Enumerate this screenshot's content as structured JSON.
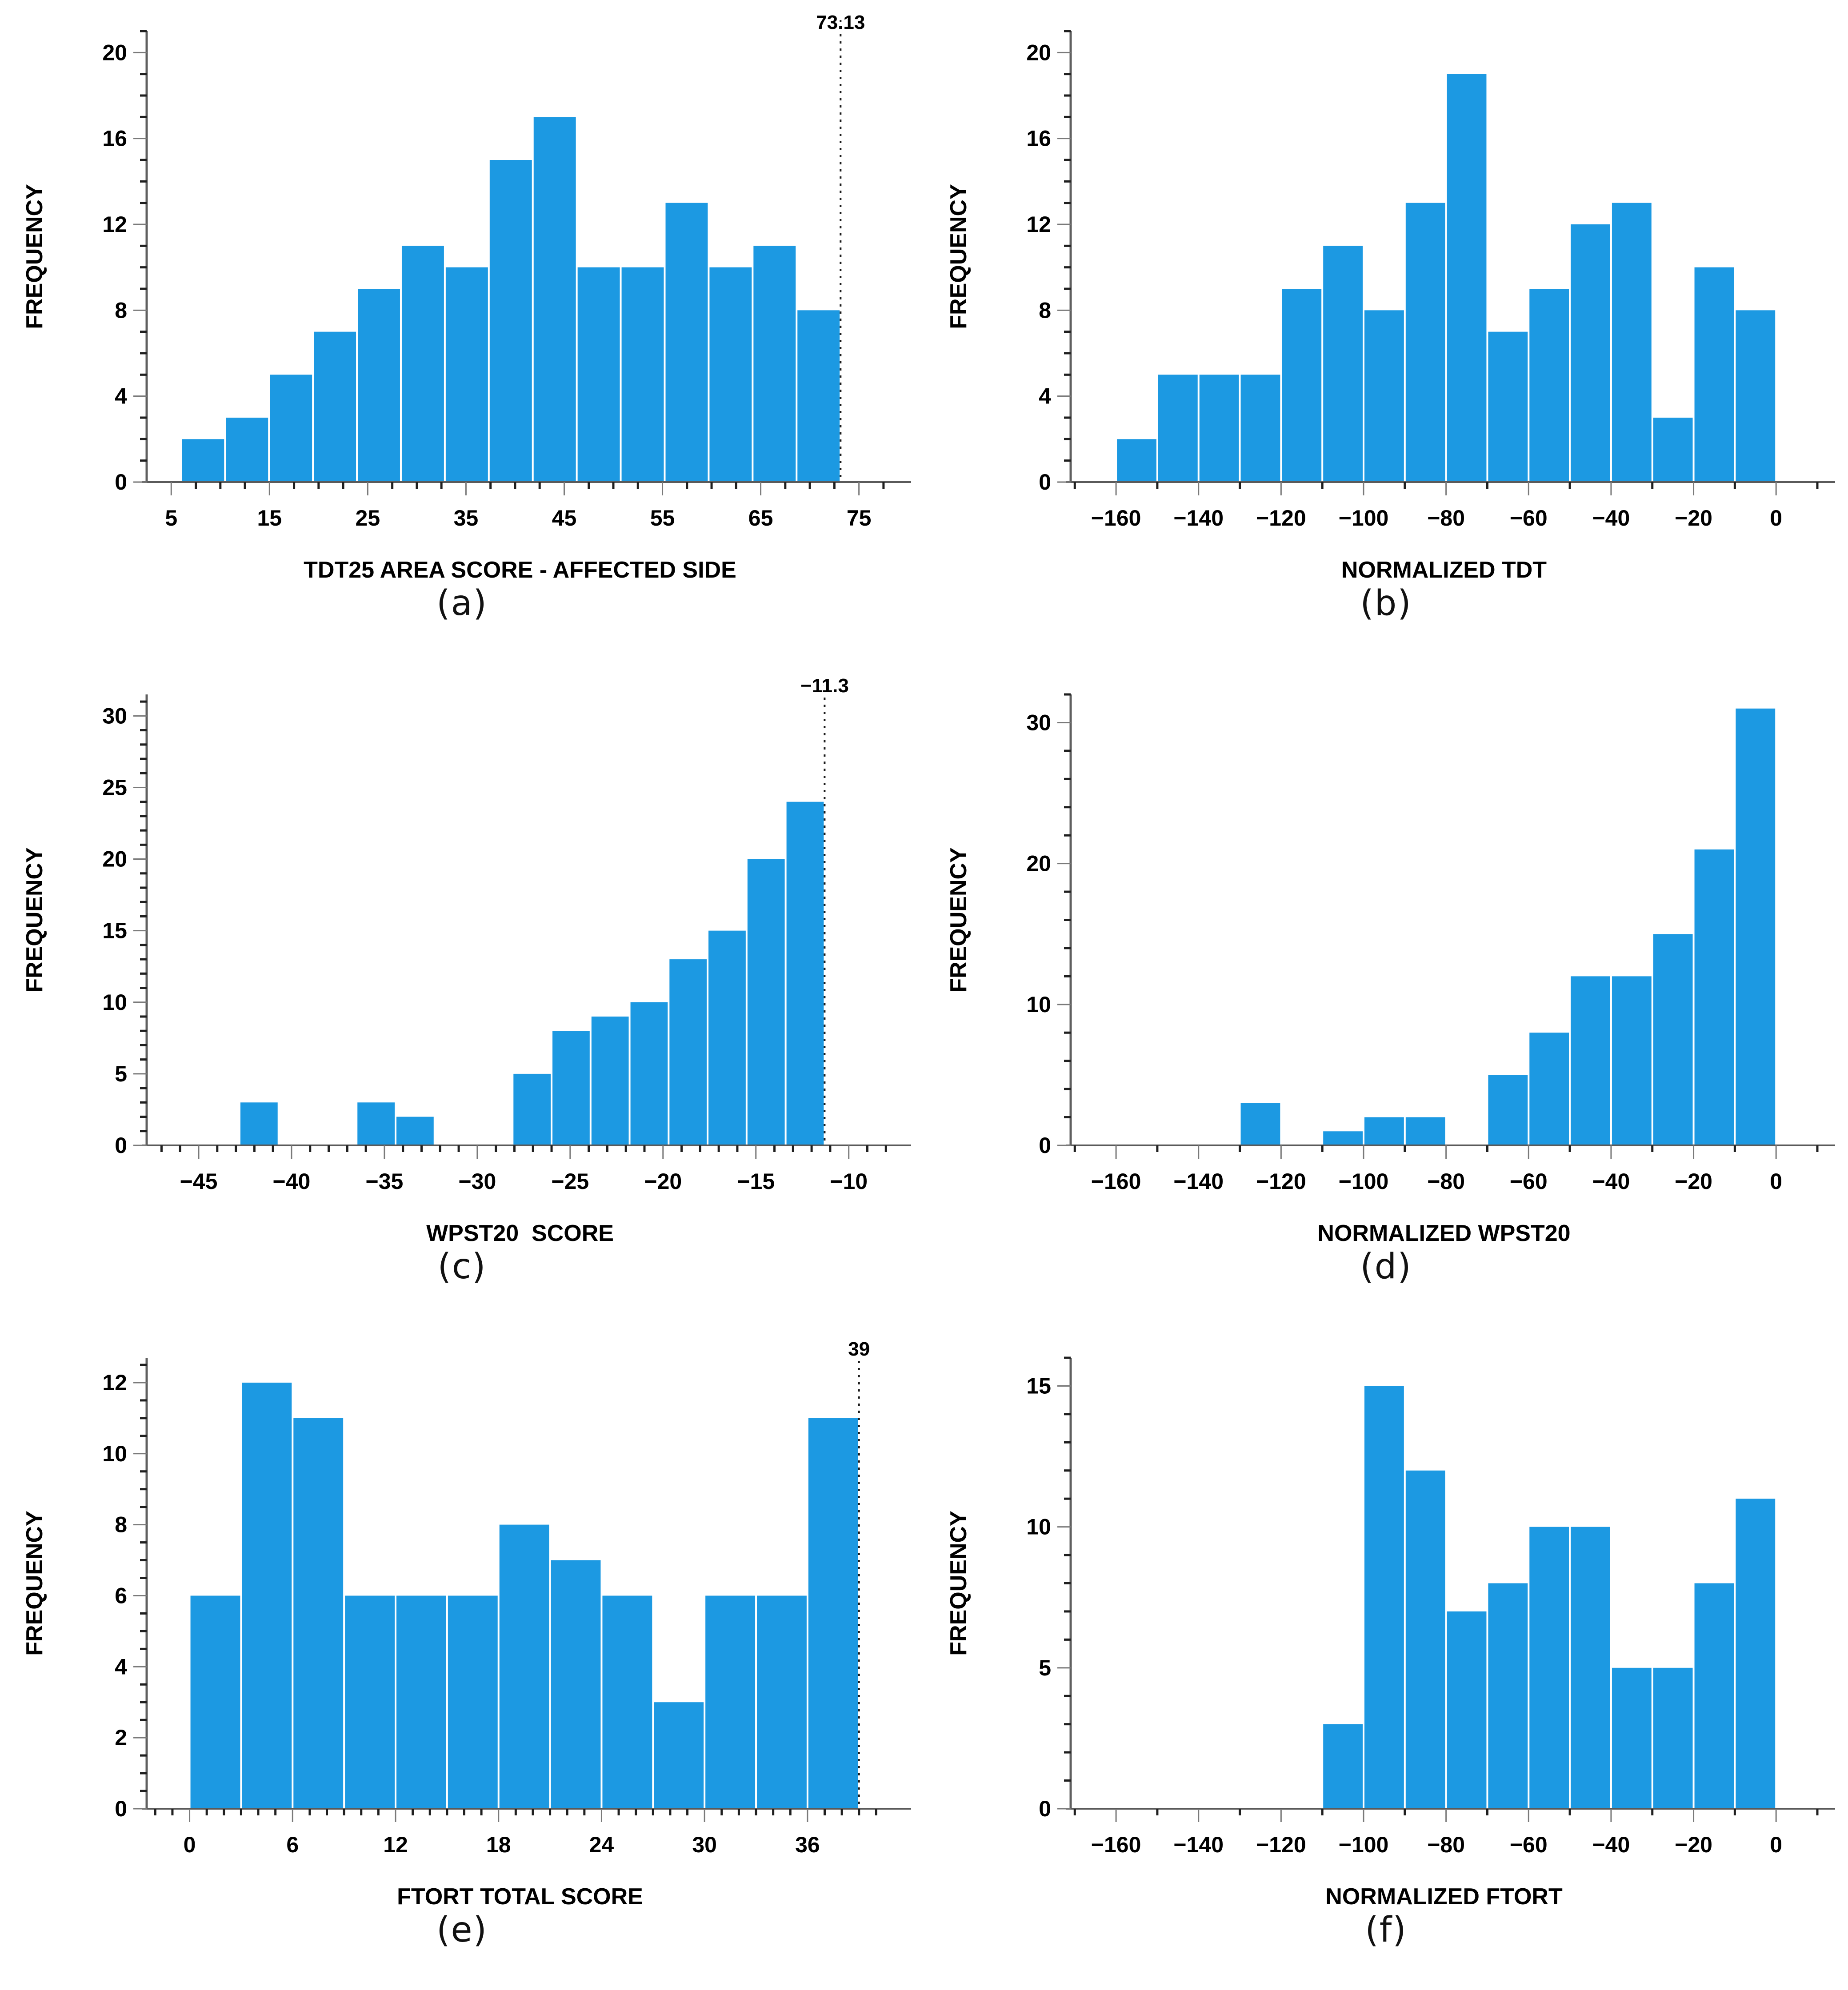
{
  "figure": {
    "background": "#ffffff",
    "colors": {
      "bar_fill": "#1C99E2",
      "bar_gap": "#ffffff",
      "x_axis_line": "#5a5a5a",
      "y_axis_line": "#5f5f5f",
      "major_tick": "#7a7a7a",
      "minor_tick": "#1f1f1f",
      "text": "#000000",
      "reference_line": "#1a1a1a"
    }
  },
  "chart_data": [
    {
      "panel": "a",
      "caption": "(a)",
      "type": "bar",
      "subtype": "histogram",
      "title": "",
      "xlabel": "TDT25 AREA SCORE - AFFECTED SIDE",
      "ylabel": "FREQUENCY",
      "grid": false,
      "legend": false,
      "x": {
        "min": 2.5,
        "max": 78.5,
        "major_values": [
          5,
          15,
          25,
          35,
          45,
          55,
          65,
          75
        ],
        "major_labels": [
          "5",
          "15",
          "25",
          "35",
          "45",
          "55",
          "65",
          "75"
        ],
        "minor_step": 2.5,
        "minor_from": 5,
        "minor_to": 77.5
      },
      "y": {
        "min": 0,
        "max": 21,
        "major_values": [
          0,
          4,
          8,
          12,
          16,
          20
        ],
        "major_labels": [
          "0",
          "4",
          "8",
          "12",
          "16",
          "20"
        ],
        "minor_step": 1,
        "minor_from": 0,
        "minor_to": 21
      },
      "bars": {
        "start": 6.0,
        "bin_width": 4.475,
        "heights": [
          2,
          3,
          5,
          7,
          9,
          11,
          10,
          15,
          17,
          10,
          10,
          13,
          10,
          11,
          8
        ]
      },
      "ref_line": {
        "x": 73.13,
        "label": "73.13"
      }
    },
    {
      "panel": "b",
      "caption": "(b)",
      "type": "bar",
      "subtype": "histogram",
      "title": "",
      "xlabel": "NORMALIZED TDT",
      "ylabel": "FREQUENCY",
      "grid": false,
      "legend": false,
      "x": {
        "min": -171,
        "max": 10,
        "major_values": [
          -160,
          -140,
          -120,
          -100,
          -80,
          -60,
          -40,
          -20,
          0
        ],
        "major_labels": [
          "−160",
          "−140",
          "−120",
          "−100",
          "−80",
          "−60",
          "−40",
          "−20",
          "0"
        ],
        "minor_step": 10,
        "minor_from": -170,
        "minor_to": 10
      },
      "y": {
        "min": 0,
        "max": 21,
        "major_values": [
          0,
          4,
          8,
          12,
          16,
          20
        ],
        "major_labels": [
          "0",
          "4",
          "8",
          "12",
          "16",
          "20"
        ],
        "minor_step": 1,
        "minor_from": 0,
        "minor_to": 21
      },
      "bars": {
        "start": -160,
        "bin_width": 10,
        "heights": [
          2,
          5,
          5,
          5,
          9,
          11,
          8,
          13,
          19,
          7,
          9,
          12,
          13,
          3,
          10,
          8
        ]
      },
      "ref_line": null
    },
    {
      "panel": "c",
      "caption": "(c)",
      "type": "bar",
      "subtype": "histogram",
      "title": "",
      "xlabel": "WPST20  SCORE",
      "ylabel": "FREQUENCY",
      "grid": false,
      "legend": false,
      "x": {
        "min": -47.8,
        "max": -7.6,
        "major_values": [
          -45,
          -40,
          -35,
          -30,
          -25,
          -20,
          -15,
          -10
        ],
        "major_labels": [
          "−45",
          "−40",
          "−35",
          "−30",
          "−25",
          "−20",
          "−15",
          "−10"
        ],
        "minor_step": 1,
        "minor_from": -47,
        "minor_to": -8
      },
      "y": {
        "min": 0,
        "max": 31.5,
        "major_values": [
          0,
          5,
          10,
          15,
          20,
          25,
          30
        ],
        "major_labels": [
          "0",
          "5",
          "10",
          "15",
          "20",
          "25",
          "30"
        ],
        "minor_step": 1,
        "minor_from": 0,
        "minor_to": 31
      },
      "bars": {
        "start": -42.8,
        "bin_width": 2.1,
        "heights": [
          3,
          0,
          0,
          3,
          2,
          0,
          0,
          5,
          8,
          9,
          10,
          13,
          15,
          20,
          24
        ]
      },
      "ref_line": {
        "x": -11.3,
        "label": "−11.3"
      }
    },
    {
      "panel": "d",
      "caption": "(d)",
      "type": "bar",
      "subtype": "histogram",
      "title": "",
      "xlabel": "NORMALIZED WPST20",
      "ylabel": "FREQUENCY",
      "grid": false,
      "legend": false,
      "x": {
        "min": -171,
        "max": 10,
        "major_values": [
          -160,
          -140,
          -120,
          -100,
          -80,
          -60,
          -40,
          -20,
          0
        ],
        "major_labels": [
          "−160",
          "−140",
          "−120",
          "−100",
          "−80",
          "−60",
          "−40",
          "−20",
          "0"
        ],
        "minor_step": 10,
        "minor_from": -170,
        "minor_to": 10
      },
      "y": {
        "min": 0,
        "max": 32,
        "major_values": [
          0,
          10,
          20,
          30
        ],
        "major_labels": [
          "0",
          "10",
          "20",
          "30"
        ],
        "minor_step": 2,
        "minor_from": 0,
        "minor_to": 32
      },
      "bars": {
        "start": -160,
        "bin_width": 10,
        "heights": [
          0,
          0,
          0,
          3,
          0,
          1,
          2,
          2,
          0,
          5,
          8,
          12,
          12,
          15,
          21,
          31
        ]
      },
      "ref_line": null
    },
    {
      "panel": "e",
      "caption": "(e)",
      "type": "bar",
      "subtype": "histogram",
      "title": "",
      "xlabel": "FTORT TOTAL SCORE",
      "ylabel": "FREQUENCY",
      "grid": false,
      "legend": false,
      "x": {
        "min": -2.5,
        "max": 41,
        "major_values": [
          0,
          6,
          12,
          18,
          24,
          30,
          36
        ],
        "major_labels": [
          "0",
          "6",
          "12",
          "18",
          "24",
          "30",
          "36"
        ],
        "minor_step": 1,
        "minor_from": -2,
        "minor_to": 40
      },
      "y": {
        "min": 0,
        "max": 12.7,
        "major_values": [
          0,
          2,
          4,
          6,
          8,
          10,
          12
        ],
        "major_labels": [
          "0",
          "2",
          "4",
          "6",
          "8",
          "10",
          "12"
        ],
        "minor_step": 0.5,
        "minor_from": 0,
        "minor_to": 12.5
      },
      "bars": {
        "start": 0,
        "bin_width": 3,
        "heights": [
          6,
          12,
          11,
          6,
          6,
          6,
          8,
          7,
          6,
          3,
          6,
          6,
          11
        ]
      },
      "ref_line": {
        "x": 39,
        "label": "39"
      }
    },
    {
      "panel": "f",
      "caption": "(f)",
      "type": "bar",
      "subtype": "histogram",
      "title": "",
      "xlabel": "NORMALIZED FTORT",
      "ylabel": "FREQUENCY",
      "grid": false,
      "legend": false,
      "x": {
        "min": -171,
        "max": 10,
        "major_values": [
          -160,
          -140,
          -120,
          -100,
          -80,
          -60,
          -40,
          -20,
          0
        ],
        "major_labels": [
          "−160",
          "−140",
          "−120",
          "−100",
          "−80",
          "−60",
          "−40",
          "−20",
          "0"
        ],
        "minor_step": 10,
        "minor_from": -170,
        "minor_to": 10
      },
      "y": {
        "min": 0,
        "max": 16,
        "major_values": [
          0,
          5,
          10,
          15
        ],
        "major_labels": [
          "0",
          "5",
          "10",
          "15"
        ],
        "minor_step": 1,
        "minor_from": 0,
        "minor_to": 16
      },
      "bars": {
        "start": -110,
        "bin_width": 10,
        "heights": [
          3,
          15,
          12,
          7,
          8,
          10,
          10,
          5,
          5,
          8,
          11
        ]
      },
      "ref_line": null
    }
  ]
}
